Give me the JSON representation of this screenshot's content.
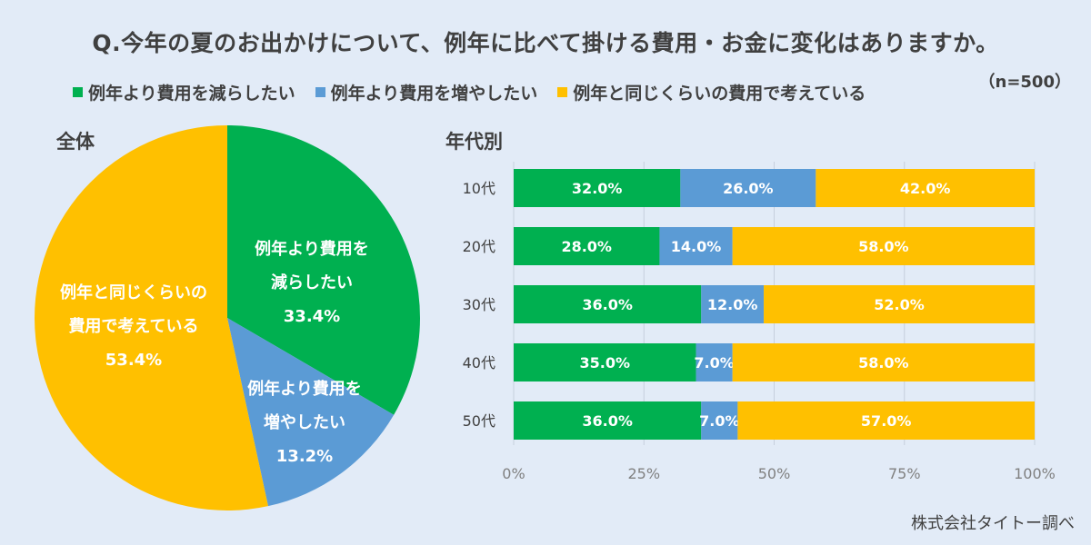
{
  "title": "Q.今年の夏のお出かけについて、例年に比べて掛ける費用・お金に変化はありますか。",
  "sample_size": "（n=500）",
  "legend": [
    {
      "label": "例年より費用を減らしたい",
      "color": "#00b050"
    },
    {
      "label": "例年より費用を増やしたい",
      "color": "#5b9bd5"
    },
    {
      "label": "例年と同じくらいの費用で考えている",
      "color": "#ffc000"
    }
  ],
  "pie_section_label": "全体",
  "bar_section_label": "年代別",
  "pie_labels": [
    {
      "lines": [
        "例年より費用を",
        "減らしたい",
        "33.4%"
      ]
    },
    {
      "lines": [
        "例年より費用を",
        "増やしたい",
        "13.2%"
      ]
    },
    {
      "lines": [
        "例年と同じくらいの",
        "費用で考えている",
        "53.4%"
      ]
    }
  ],
  "credit": "株式会社タイトー調べ",
  "chart_data": [
    {
      "type": "pie",
      "title": "全体",
      "categories": [
        "例年より費用を減らしたい",
        "例年より費用を増やしたい",
        "例年と同じくらいの費用で考えている"
      ],
      "values": [
        33.4,
        13.2,
        53.4
      ],
      "colors": [
        "#00b050",
        "#5b9bd5",
        "#ffc000"
      ]
    },
    {
      "type": "bar",
      "orientation": "horizontal",
      "stacked": true,
      "title": "年代別",
      "categories": [
        "10代",
        "20代",
        "30代",
        "40代",
        "50代"
      ],
      "series": [
        {
          "name": "例年より費用を減らしたい",
          "values": [
            32.0,
            28.0,
            36.0,
            35.0,
            36.0
          ],
          "color": "#00b050"
        },
        {
          "name": "例年より費用を増やしたい",
          "values": [
            26.0,
            14.0,
            12.0,
            7.0,
            7.0
          ],
          "color": "#5b9bd5"
        },
        {
          "name": "例年と同じくらいの費用で考えている",
          "values": [
            42.0,
            58.0,
            52.0,
            58.0,
            57.0
          ],
          "color": "#ffc000"
        }
      ],
      "xlim": [
        0,
        100
      ],
      "xticks": [
        "0%",
        "25%",
        "50%",
        "75%",
        "100%"
      ],
      "value_format": "%.1f%",
      "grid": true
    }
  ]
}
